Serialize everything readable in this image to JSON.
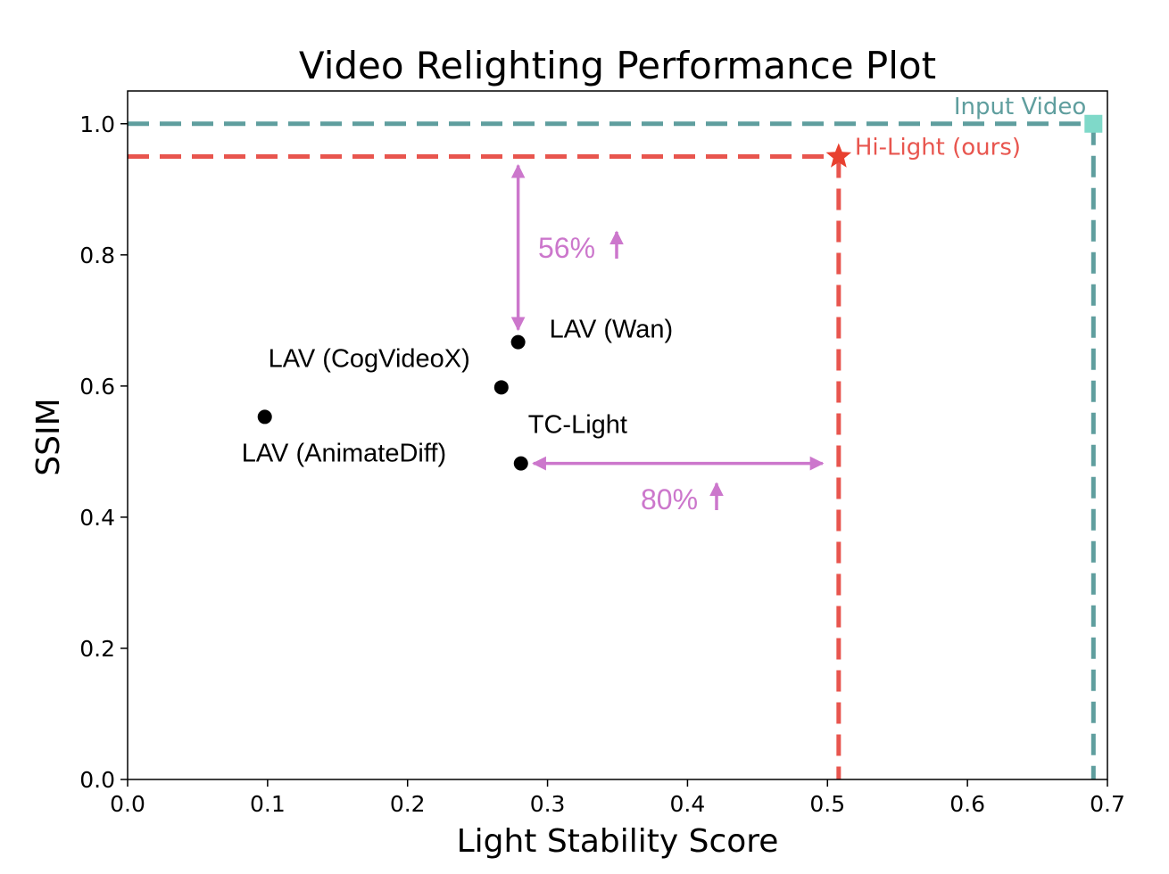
{
  "chart_data": {
    "type": "scatter",
    "title": "Video Relighting Performance Plot",
    "xlabel": "Light Stability Score",
    "ylabel": "SSIM",
    "xlim": [
      0,
      0.7
    ],
    "ylim": [
      0,
      1.05
    ],
    "xticks": [
      "0.0",
      "0.1",
      "0.2",
      "0.3",
      "0.4",
      "0.5",
      "0.6",
      "0.7"
    ],
    "yticks": [
      "0.0",
      "0.2",
      "0.4",
      "0.6",
      "0.8",
      "1.0"
    ],
    "grid": false,
    "points": [
      {
        "label": "LAV (Wan)",
        "x": 0.279,
        "y": 0.667
      },
      {
        "label": "LAV (CogVideoX)",
        "x": 0.267,
        "y": 0.598
      },
      {
        "label": "LAV (AnimateDiff)",
        "x": 0.098,
        "y": 0.553
      },
      {
        "label": "TC-Light",
        "x": 0.281,
        "y": 0.482
      }
    ],
    "references": [
      {
        "label": "Input Video",
        "x": 0.69,
        "y": 1.0,
        "color": "#5f9e9e",
        "marker": "square",
        "marker_color": "#7fd9c9"
      },
      {
        "label": "Hi-Light (ours)",
        "x": 0.508,
        "y": 0.95,
        "color": "#e8554e",
        "marker": "star",
        "marker_color": "#e8402f"
      }
    ],
    "annotations": [
      {
        "text": "56%",
        "color": "#cc77cc"
      },
      {
        "text": "80%",
        "color": "#cc77cc"
      }
    ]
  }
}
